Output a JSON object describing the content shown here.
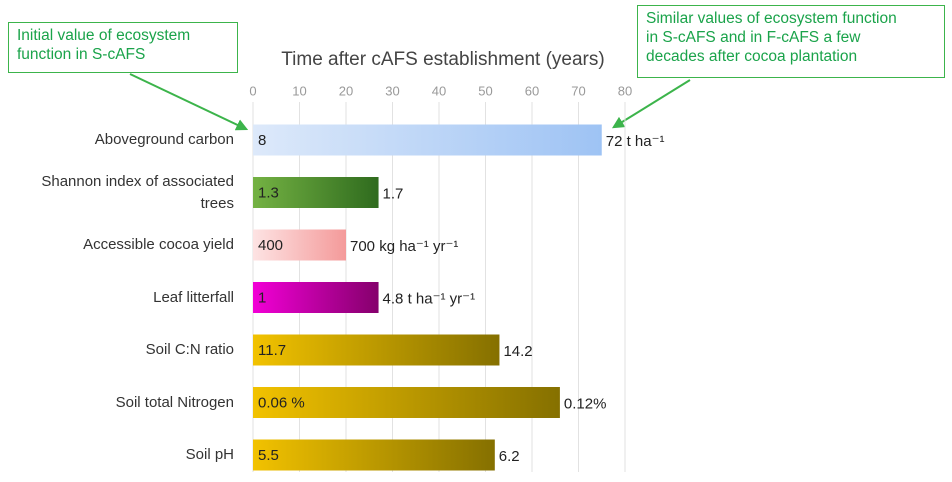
{
  "chart_data": {
    "type": "bar",
    "orientation": "horizontal",
    "x_label": "Time after cAFS establishment (years)",
    "xlim": [
      0,
      80
    ],
    "xticks": [
      0,
      10,
      20,
      30,
      40,
      50,
      60,
      70,
      80
    ],
    "grid": true,
    "categories": [
      "Aboveground carbon",
      "Shannon index of associated trees",
      "Accessible cocoa yield",
      "Leaf litterfall",
      "Soil C:N ratio",
      "Soil total Nitrogen",
      "Soil pH"
    ],
    "values": [
      75,
      27,
      20,
      27,
      53,
      66,
      52
    ],
    "start_labels": [
      "8",
      "1.3",
      "400",
      "1",
      "11.7",
      "0.06 %",
      "5.5"
    ],
    "end_labels": [
      "72 t ha⁻¹",
      "1.7",
      "700 kg ha⁻¹ yr⁻¹",
      "4.8 t ha⁻¹ yr⁻¹",
      "14.2",
      "0.12%",
      "6.2"
    ],
    "colors": [
      [
        "#dde9fa",
        "#9ec3f4"
      ],
      [
        "#74b243",
        "#2f6b1e"
      ],
      [
        "#fde3e3",
        "#f49a9a"
      ],
      [
        "#f200d6",
        "#85006c"
      ],
      [
        "#f2c200",
        "#857000"
      ],
      [
        "#f2c200",
        "#857000"
      ],
      [
        "#f2c200",
        "#857000"
      ]
    ],
    "annotations": [
      {
        "lines": [
          "Initial value of ecosystem",
          "function in S-cAFS"
        ]
      },
      {
        "lines": [
          "Similar values of ecosystem function",
          "in S-cAFS and in F-cAFS a few",
          "decades after cocoa plantation"
        ]
      }
    ]
  }
}
